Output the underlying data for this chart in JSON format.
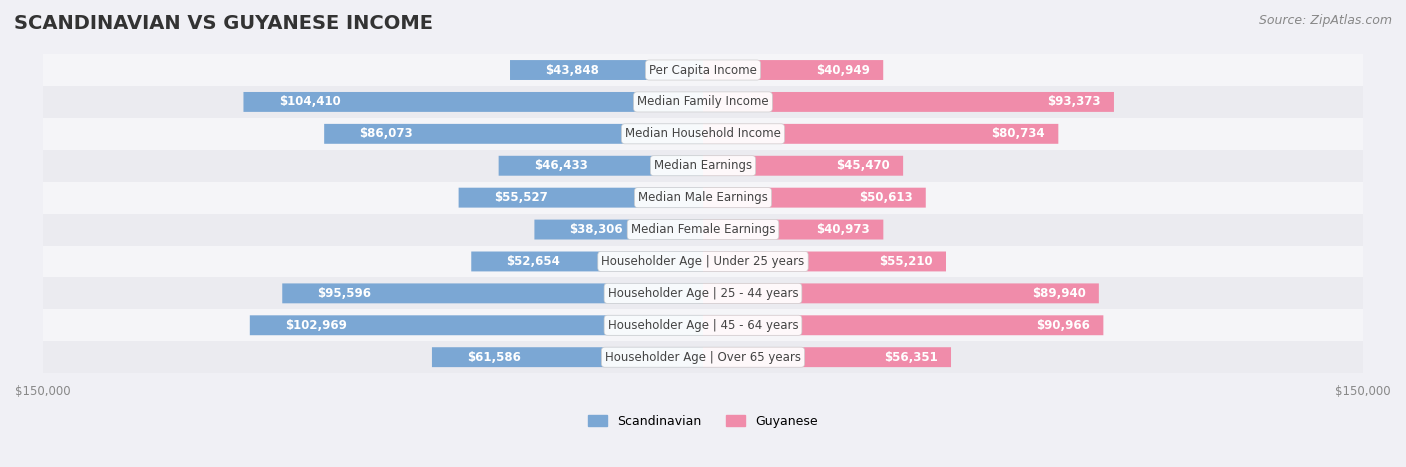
{
  "title": "SCANDINAVIAN VS GUYANESE INCOME",
  "source": "Source: ZipAtlas.com",
  "categories": [
    "Per Capita Income",
    "Median Family Income",
    "Median Household Income",
    "Median Earnings",
    "Median Male Earnings",
    "Median Female Earnings",
    "Householder Age | Under 25 years",
    "Householder Age | 25 - 44 years",
    "Householder Age | 45 - 64 years",
    "Householder Age | Over 65 years"
  ],
  "scandinavian_values": [
    43848,
    104410,
    86073,
    46433,
    55527,
    38306,
    52654,
    95596,
    102969,
    61586
  ],
  "guyanese_values": [
    40949,
    93373,
    80734,
    45470,
    50613,
    40973,
    55210,
    89940,
    90966,
    56351
  ],
  "scandinavian_labels": [
    "$43,848",
    "$104,410",
    "$86,073",
    "$46,433",
    "$55,527",
    "$38,306",
    "$52,654",
    "$95,596",
    "$102,969",
    "$61,586"
  ],
  "guyanese_labels": [
    "$40,949",
    "$93,373",
    "$80,734",
    "$45,470",
    "$50,613",
    "$40,973",
    "$55,210",
    "$89,940",
    "$90,966",
    "$56,351"
  ],
  "scandinavian_color": "#7ba7d4",
  "guyanese_color": "#f08caa",
  "scandinavian_color_dark": "#5b8ec4",
  "guyanese_color_dark": "#e8608a",
  "bar_bg_color": "#e8e8f0",
  "row_bg_color_odd": "#f5f5f8",
  "row_bg_color_even": "#ebebf0",
  "max_value": 150000,
  "label_color_inside": "#ffffff",
  "label_color_outside": "#888888",
  "title_fontsize": 14,
  "source_fontsize": 9,
  "label_fontsize": 8.5,
  "cat_fontsize": 8.5,
  "legend_fontsize": 9,
  "axis_label_fontsize": 8.5,
  "background_color": "#f0f0f5"
}
